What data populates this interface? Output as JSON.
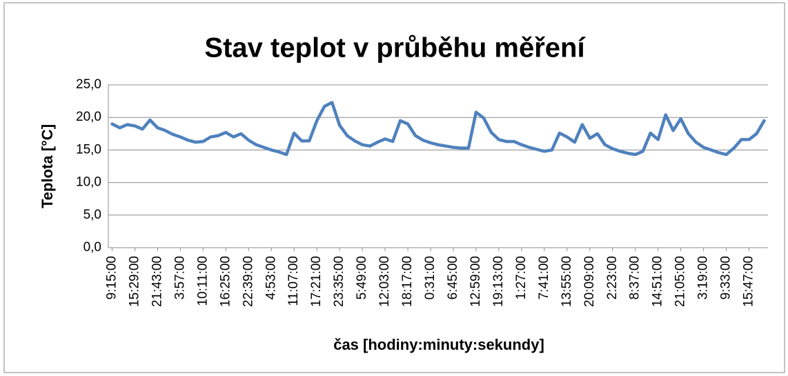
{
  "chart_data": {
    "type": "line",
    "title": "Stav teplot v průběhu měření",
    "x_label": "čas [hodiny:minuty:sekundy]",
    "y_label": "Teplota [°C]",
    "categories": [
      "9:15:00",
      null,
      null,
      "15:29:00",
      null,
      null,
      "21:43:00",
      null,
      null,
      "3:57:00",
      null,
      null,
      "10:11:00",
      null,
      null,
      "16:25:00",
      null,
      null,
      "22:39:00",
      null,
      null,
      "4:53:00",
      null,
      null,
      "11:07:00",
      null,
      null,
      "17:21:00",
      null,
      null,
      "23:35:00",
      null,
      null,
      "5:49:00",
      null,
      null,
      "12:03:00",
      null,
      null,
      "18:17:00",
      null,
      null,
      "0:31:00",
      null,
      null,
      "6:45:00",
      null,
      null,
      "12:59:00",
      null,
      null,
      "19:13:00",
      null,
      null,
      "1:27:00",
      null,
      null,
      "7:41:00",
      null,
      null,
      "13:55:00",
      null,
      null,
      "20:09:00",
      null,
      null,
      "2:23:00",
      null,
      null,
      "8:37:00",
      null,
      null,
      "14:51:00",
      null,
      null,
      "21:05:00",
      null,
      null,
      "3:19:00",
      null,
      null,
      "9:33:00",
      null,
      null,
      "15:47:00",
      null,
      null
    ],
    "series": [
      {
        "name": "Teplota",
        "color": "#4f81bd",
        "values": [
          19.0,
          18.4,
          18.9,
          18.7,
          18.2,
          19.6,
          18.4,
          18.0,
          17.4,
          17.0,
          16.5,
          16.2,
          16.3,
          17.0,
          17.2,
          17.7,
          17.0,
          17.5,
          16.5,
          15.8,
          15.4,
          15.0,
          14.7,
          14.3,
          17.6,
          16.4,
          16.4,
          19.5,
          21.7,
          22.3,
          18.8,
          17.2,
          16.4,
          15.8,
          15.6,
          16.2,
          16.7,
          16.3,
          19.5,
          19.0,
          17.2,
          16.5,
          16.1,
          15.8,
          15.6,
          15.4,
          15.3,
          15.3,
          20.8,
          19.9,
          17.7,
          16.6,
          16.3,
          16.3,
          15.8,
          15.4,
          15.1,
          14.8,
          15.0,
          17.6,
          17.0,
          16.2,
          18.9,
          16.8,
          17.5,
          15.8,
          15.2,
          14.8,
          14.5,
          14.3,
          14.8,
          17.6,
          16.6,
          20.4,
          18.0,
          19.8,
          17.5,
          16.2,
          15.4,
          15.0,
          14.6,
          14.3,
          15.3,
          16.6,
          16.6,
          17.5,
          19.5
        ]
      }
    ],
    "ylim": [
      0,
      25
    ],
    "yticks": [
      {
        "value": 0,
        "label": "0,0"
      },
      {
        "value": 5,
        "label": "5,0"
      },
      {
        "value": 10,
        "label": "10,0"
      },
      {
        "value": 15,
        "label": "15,0"
      },
      {
        "value": 20,
        "label": "20,0"
      },
      {
        "value": 25,
        "label": "25,0"
      }
    ],
    "grid": true
  }
}
